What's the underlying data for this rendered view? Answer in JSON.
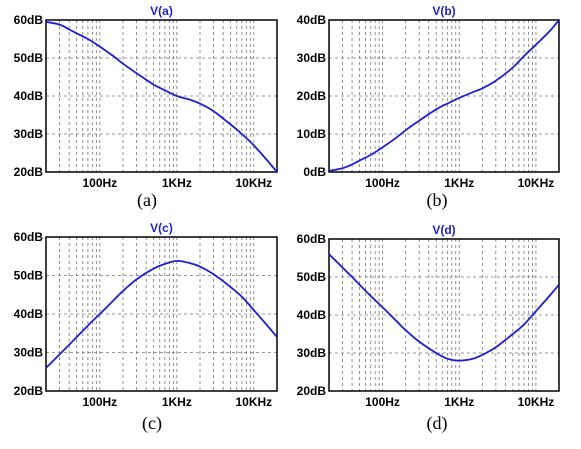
{
  "chart_data": [
    {
      "type": "line",
      "title": "V(a)",
      "caption": "(a)",
      "x_scale": "log",
      "xlim": [
        "20Hz",
        "20KHz"
      ],
      "x_ticks": [
        "100Hz",
        "1KHz",
        "10KHz"
      ],
      "ylim": [
        "20dB",
        "60dB"
      ],
      "y_ticks": [
        "20dB",
        "30dB",
        "40dB",
        "50dB",
        "60dB"
      ],
      "grid": true,
      "line_color": "#1f1fd6",
      "series": [
        {
          "x_hz": [
            20,
            30,
            40,
            50,
            70,
            100,
            150,
            200,
            300,
            500,
            700,
            1000,
            1500,
            2000,
            3000,
            5000,
            7000,
            10000,
            15000,
            20000
          ],
          "y_db": [
            59.5,
            58.8,
            57.5,
            56.5,
            55.0,
            53.0,
            50.5,
            48.5,
            46.0,
            43.0,
            41.5,
            40.0,
            39.0,
            38.0,
            36.0,
            32.5,
            30.0,
            27.0,
            23.0,
            20.0
          ]
        }
      ]
    },
    {
      "type": "line",
      "title": "V(b)",
      "caption": "(b)",
      "x_scale": "log",
      "xlim": [
        "20Hz",
        "20KHz"
      ],
      "x_ticks": [
        "100Hz",
        "1KHz",
        "10KHz"
      ],
      "ylim": [
        "0dB",
        "40dB"
      ],
      "y_ticks": [
        "0dB",
        "10dB",
        "20dB",
        "30dB",
        "40dB"
      ],
      "grid": true,
      "line_color": "#1f1fd6",
      "series": [
        {
          "x_hz": [
            20,
            30,
            40,
            50,
            70,
            100,
            150,
            200,
            300,
            500,
            700,
            1000,
            1500,
            2000,
            3000,
            5000,
            7000,
            10000,
            15000,
            20000
          ],
          "y_db": [
            0.3,
            1.0,
            2.0,
            3.0,
            4.5,
            6.5,
            9.0,
            11.0,
            13.5,
            16.5,
            18.0,
            19.5,
            21.0,
            22.0,
            24.0,
            27.5,
            30.5,
            33.5,
            37.0,
            40.0
          ]
        }
      ]
    },
    {
      "type": "line",
      "title": "V(c)",
      "caption": "(c)",
      "x_scale": "log",
      "xlim": [
        "20Hz",
        "20KHz"
      ],
      "x_ticks": [
        "100Hz",
        "1KHz",
        "10KHz"
      ],
      "ylim": [
        "20dB",
        "60dB"
      ],
      "y_ticks": [
        "20dB",
        "30dB",
        "40dB",
        "50dB",
        "60dB"
      ],
      "grid": true,
      "line_color": "#1f1fd6",
      "series": [
        {
          "x_hz": [
            20,
            30,
            40,
            50,
            70,
            100,
            150,
            200,
            300,
            500,
            700,
            1000,
            1500,
            2000,
            3000,
            5000,
            7000,
            10000,
            15000,
            20000
          ],
          "y_db": [
            26.0,
            29.5,
            32.0,
            34.0,
            37.0,
            40.0,
            43.5,
            46.0,
            49.0,
            51.8,
            53.0,
            53.8,
            53.2,
            52.3,
            50.3,
            47.0,
            44.5,
            41.0,
            37.0,
            34.0
          ]
        }
      ]
    },
    {
      "type": "line",
      "title": "V(d)",
      "caption": "(d)",
      "x_scale": "log",
      "xlim": [
        "20Hz",
        "20KHz"
      ],
      "x_ticks": [
        "100Hz",
        "1KHz",
        "10KHz"
      ],
      "ylim": [
        "20dB",
        "60dB"
      ],
      "y_ticks": [
        "20dB",
        "30dB",
        "40dB",
        "50dB",
        "60dB"
      ],
      "grid": true,
      "line_color": "#1f1fd6",
      "series": [
        {
          "x_hz": [
            20,
            30,
            40,
            50,
            70,
            100,
            150,
            200,
            300,
            500,
            700,
            1000,
            1500,
            2000,
            3000,
            5000,
            7000,
            10000,
            15000,
            20000
          ],
          "y_db": [
            56.0,
            52.5,
            50.0,
            48.0,
            45.0,
            42.0,
            38.5,
            36.0,
            33.0,
            30.0,
            28.5,
            28.0,
            28.5,
            29.5,
            31.5,
            35.0,
            37.5,
            41.0,
            45.0,
            48.0
          ]
        }
      ]
    }
  ]
}
